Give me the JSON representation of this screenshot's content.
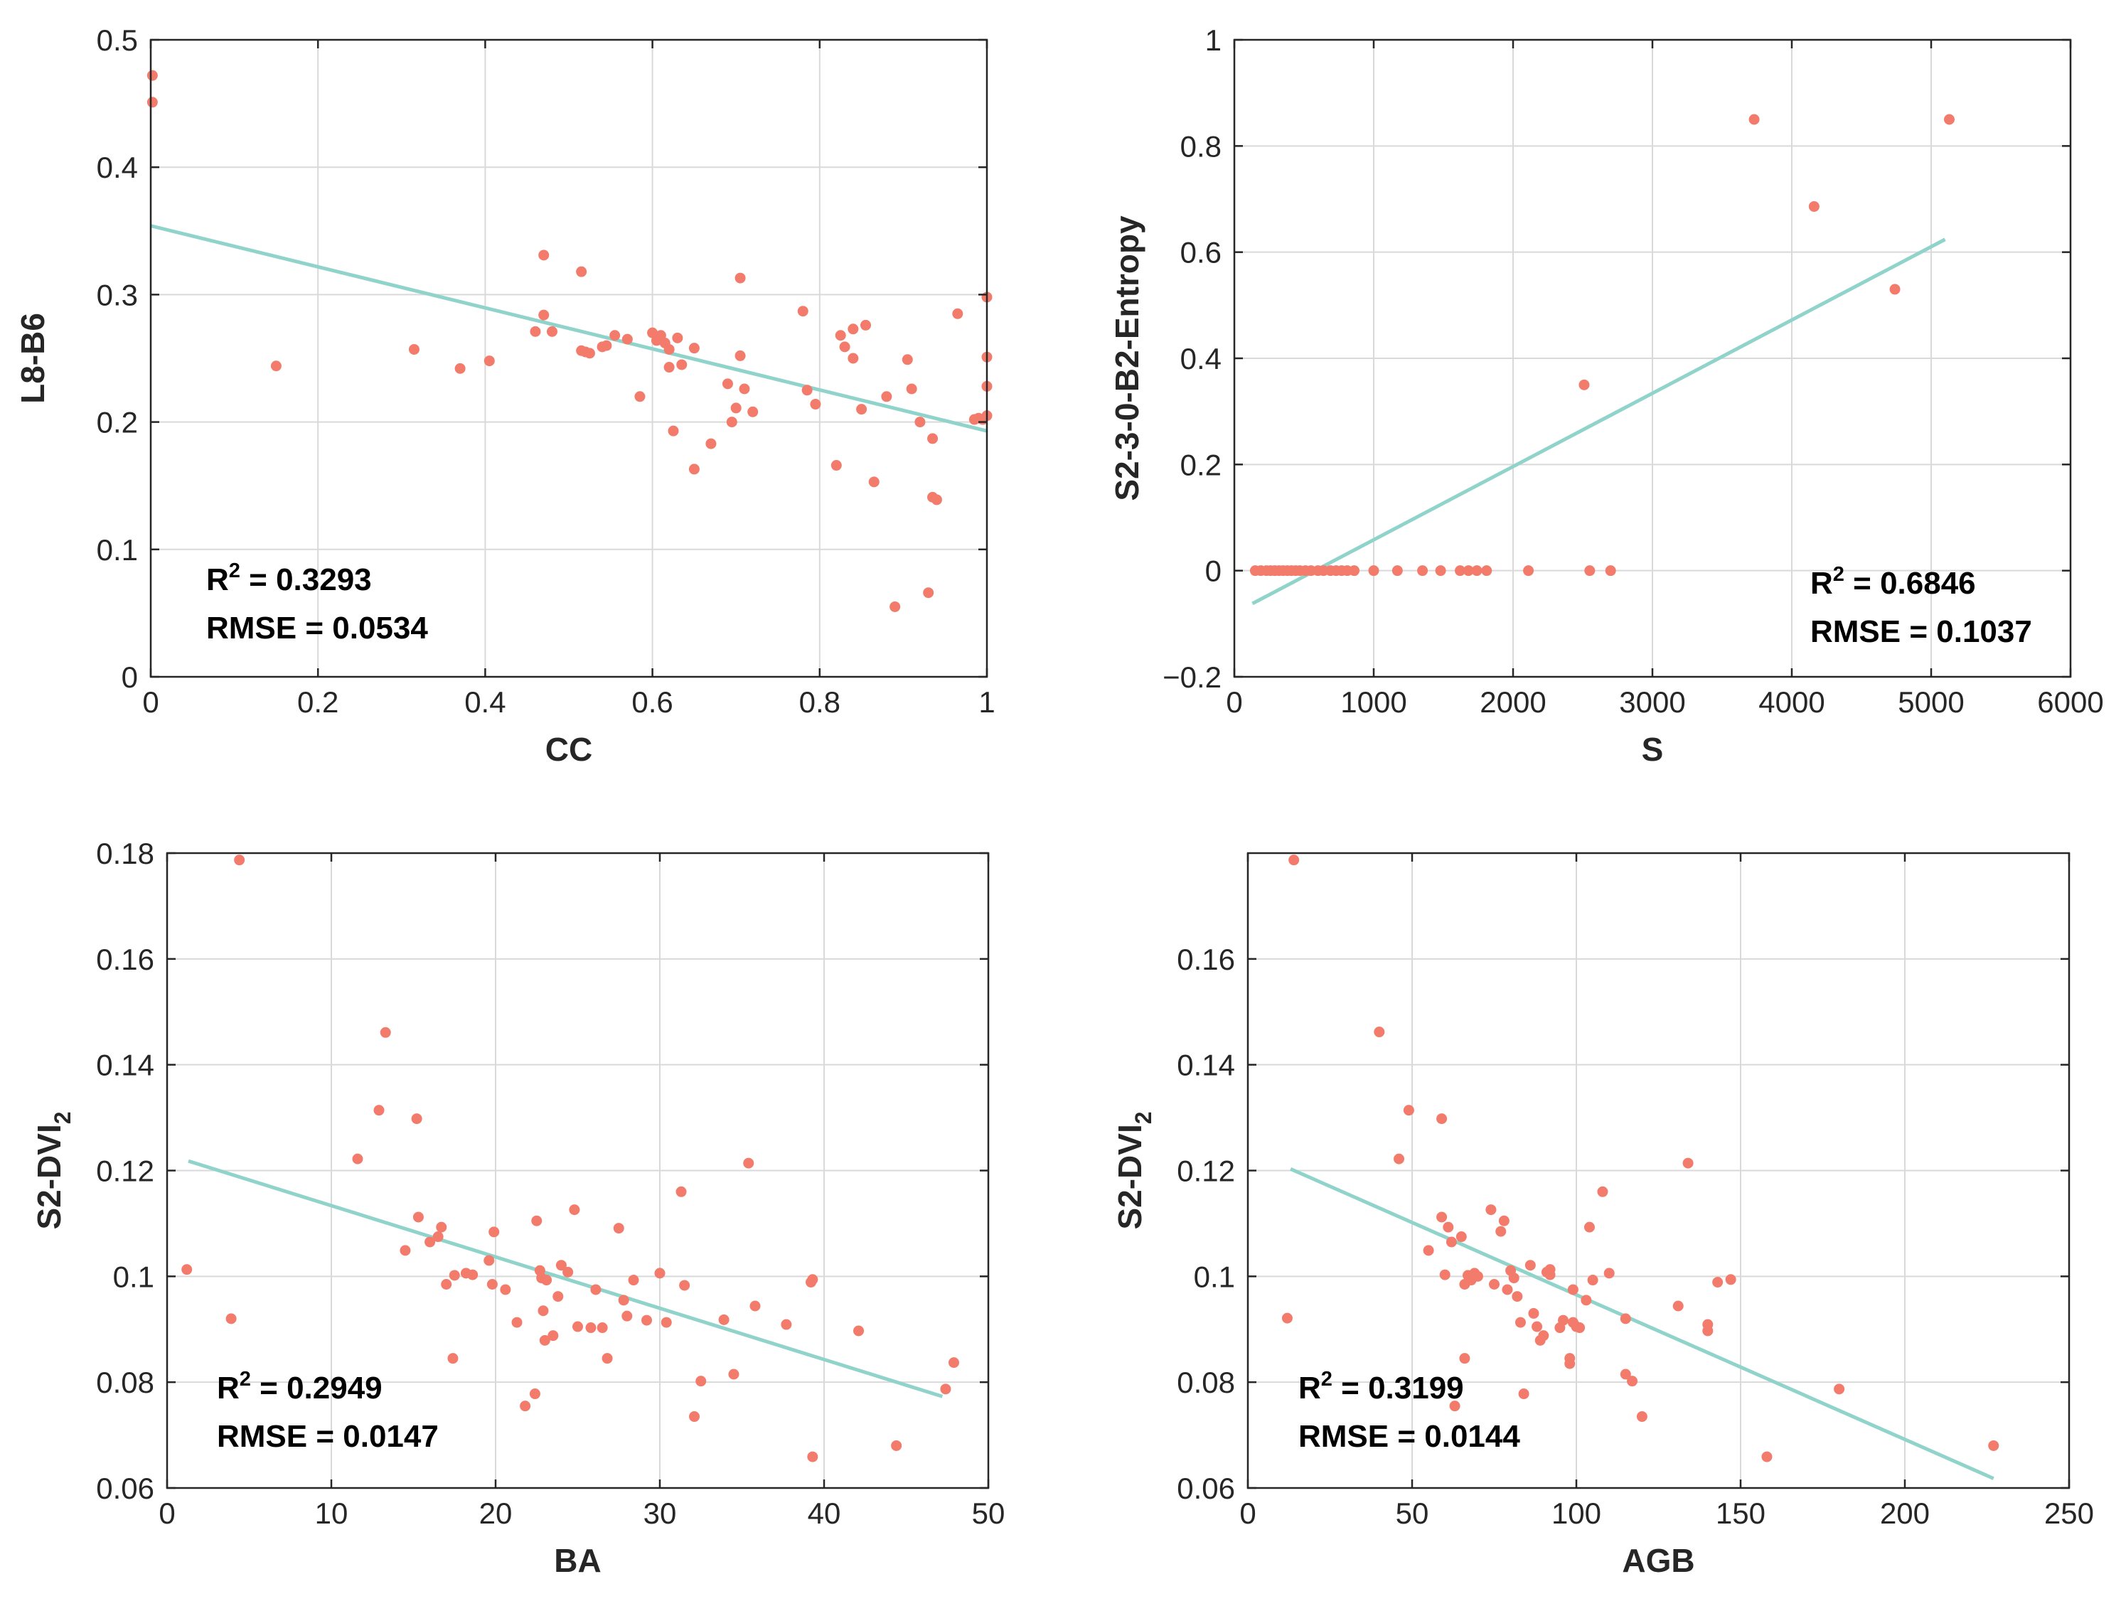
{
  "colors": {
    "points": "#f27b6c",
    "fit_line": "#8fd3ca",
    "grid": "#d9d9d9",
    "axes": "#262626"
  },
  "chart_data": [
    {
      "type": "scatter",
      "xlabel": "CC",
      "ylabel": "L8-B6",
      "xlim": [
        0,
        1
      ],
      "ylim": [
        0,
        0.5
      ],
      "xticks": [
        0,
        0.2,
        0.4,
        0.6,
        0.8,
        1
      ],
      "yticks": [
        0,
        0.1,
        0.2,
        0.3,
        0.4,
        0.5
      ],
      "xtick_labels": [
        "0",
        "0.2",
        "0.4",
        "0.6",
        "0.8",
        "1"
      ],
      "ytick_labels": [
        "0",
        "0.1",
        "0.2",
        "0.3",
        "0.4",
        "0.5"
      ],
      "grid": true,
      "fit_line": {
        "x": [
          0,
          1
        ],
        "y": [
          0.354,
          0.193
        ]
      },
      "annotation": {
        "r2_label": "R",
        "r2_value": " = 0.3293",
        "rmse": "RMSE = 0.0534",
        "placement": "bottom-left"
      },
      "points": [
        [
          0.002,
          0.472
        ],
        [
          0.002,
          0.451
        ],
        [
          0.15,
          0.244
        ],
        [
          0.315,
          0.257
        ],
        [
          0.37,
          0.242
        ],
        [
          0.405,
          0.248
        ],
        [
          0.46,
          0.271
        ],
        [
          0.47,
          0.331
        ],
        [
          0.47,
          0.284
        ],
        [
          0.48,
          0.271
        ],
        [
          0.515,
          0.318
        ],
        [
          0.515,
          0.256
        ],
        [
          0.52,
          0.255
        ],
        [
          0.525,
          0.254
        ],
        [
          0.54,
          0.259
        ],
        [
          0.545,
          0.26
        ],
        [
          0.555,
          0.268
        ],
        [
          0.57,
          0.265
        ],
        [
          0.585,
          0.22
        ],
        [
          0.6,
          0.27
        ],
        [
          0.605,
          0.264
        ],
        [
          0.61,
          0.268
        ],
        [
          0.615,
          0.262
        ],
        [
          0.62,
          0.257
        ],
        [
          0.62,
          0.243
        ],
        [
          0.625,
          0.193
        ],
        [
          0.63,
          0.266
        ],
        [
          0.635,
          0.245
        ],
        [
          0.65,
          0.258
        ],
        [
          0.65,
          0.163
        ],
        [
          0.67,
          0.183
        ],
        [
          0.69,
          0.23
        ],
        [
          0.695,
          0.2
        ],
        [
          0.7,
          0.211
        ],
        [
          0.705,
          0.313
        ],
        [
          0.705,
          0.252
        ],
        [
          0.71,
          0.226
        ],
        [
          0.72,
          0.208
        ],
        [
          0.78,
          0.287
        ],
        [
          0.785,
          0.225
        ],
        [
          0.795,
          0.214
        ],
        [
          0.82,
          0.166
        ],
        [
          0.825,
          0.268
        ],
        [
          0.83,
          0.259
        ],
        [
          0.84,
          0.273
        ],
        [
          0.84,
          0.25
        ],
        [
          0.85,
          0.21
        ],
        [
          0.855,
          0.276
        ],
        [
          0.865,
          0.153
        ],
        [
          0.88,
          0.22
        ],
        [
          0.89,
          0.055
        ],
        [
          0.905,
          0.249
        ],
        [
          0.91,
          0.226
        ],
        [
          0.92,
          0.2
        ],
        [
          0.93,
          0.066
        ],
        [
          0.935,
          0.187
        ],
        [
          0.935,
          0.141
        ],
        [
          0.94,
          0.139
        ],
        [
          0.965,
          0.285
        ],
        [
          0.985,
          0.202
        ],
        [
          0.99,
          0.203
        ],
        [
          0.995,
          0.202
        ],
        [
          1.0,
          0.298
        ],
        [
          1.0,
          0.251
        ],
        [
          1.0,
          0.228
        ],
        [
          1.0,
          0.205
        ]
      ]
    },
    {
      "type": "scatter",
      "xlabel": "S",
      "ylabel": "S2-3-0-B2-Entropy",
      "xlim": [
        0,
        6000
      ],
      "ylim": [
        -0.2,
        1
      ],
      "xticks": [
        0,
        1000,
        2000,
        3000,
        4000,
        5000,
        6000
      ],
      "yticks": [
        -0.2,
        0,
        0.2,
        0.4,
        0.6,
        0.8,
        1
      ],
      "xtick_labels": [
        "0",
        "1000",
        "2000",
        "3000",
        "4000",
        "5000",
        "6000"
      ],
      "ytick_labels": [
        "−0.2",
        "0",
        "0.2",
        "0.4",
        "0.6",
        "0.8",
        "1"
      ],
      "grid": true,
      "fit_line": {
        "x": [
          130,
          5100
        ],
        "y": [
          -0.062,
          0.624
        ]
      },
      "annotation": {
        "r2_label": "R",
        "r2_value": " = 0.6846",
        "rmse": "RMSE = 0.1037",
        "placement": "bottom-right"
      },
      "points": [
        [
          150,
          0
        ],
        [
          190,
          0
        ],
        [
          230,
          0
        ],
        [
          260,
          0
        ],
        [
          290,
          0
        ],
        [
          320,
          0
        ],
        [
          350,
          0
        ],
        [
          380,
          0
        ],
        [
          410,
          0
        ],
        [
          440,
          0
        ],
        [
          470,
          0
        ],
        [
          510,
          0
        ],
        [
          550,
          0
        ],
        [
          600,
          0
        ],
        [
          640,
          0
        ],
        [
          690,
          0
        ],
        [
          730,
          0
        ],
        [
          770,
          0
        ],
        [
          810,
          0
        ],
        [
          860,
          0
        ],
        [
          1000,
          0
        ],
        [
          1170,
          0
        ],
        [
          1350,
          0
        ],
        [
          1480,
          0
        ],
        [
          1620,
          0
        ],
        [
          1680,
          0
        ],
        [
          1740,
          0
        ],
        [
          1810,
          0
        ],
        [
          2110,
          0
        ],
        [
          2550,
          0
        ],
        [
          2700,
          0
        ],
        [
          2510,
          0.35
        ],
        [
          3730,
          0.85
        ],
        [
          4160,
          0.686
        ],
        [
          4740,
          0.53
        ],
        [
          5130,
          0.85
        ]
      ]
    },
    {
      "type": "scatter",
      "xlabel": "BA",
      "ylabel": "S2-DVI",
      "ylabel_subscript": "2",
      "xlim": [
        0,
        50
      ],
      "ylim": [
        0.06,
        0.18
      ],
      "xticks": [
        0,
        10,
        20,
        30,
        40,
        50
      ],
      "yticks": [
        0.06,
        0.08,
        0.1,
        0.12,
        0.14,
        0.16,
        0.18
      ],
      "xtick_labels": [
        "0",
        "10",
        "20",
        "30",
        "40",
        "50"
      ],
      "ytick_labels": [
        "0.06",
        "0.08",
        "0.1",
        "0.12",
        "0.14",
        "0.16",
        "0.18"
      ],
      "grid": true,
      "fit_line": {
        "x": [
          1.3,
          47.2
        ],
        "y": [
          0.1218,
          0.0773
        ]
      },
      "annotation": {
        "r2_label": "R",
        "r2_value": " = 0.2949",
        "rmse": "RMSE = 0.0147",
        "placement": "bottom-left"
      },
      "points": [
        [
          1.2,
          0.1013
        ],
        [
          3.9,
          0.092
        ],
        [
          4.4,
          0.1787
        ],
        [
          11.6,
          0.1222
        ],
        [
          12.9,
          0.1314
        ],
        [
          13.3,
          0.1461
        ],
        [
          14.5,
          0.1049
        ],
        [
          15.2,
          0.1298
        ],
        [
          15.3,
          0.1112
        ],
        [
          16.0,
          0.1065
        ],
        [
          16.5,
          0.1075
        ],
        [
          16.7,
          0.1093
        ],
        [
          17.0,
          0.0985
        ],
        [
          17.4,
          0.0845
        ],
        [
          17.5,
          0.1002
        ],
        [
          18.2,
          0.1006
        ],
        [
          18.6,
          0.1003
        ],
        [
          19.6,
          0.103
        ],
        [
          19.8,
          0.0985
        ],
        [
          19.9,
          0.1084
        ],
        [
          20.6,
          0.0975
        ],
        [
          21.3,
          0.0913
        ],
        [
          21.8,
          0.0755
        ],
        [
          22.4,
          0.0778
        ],
        [
          22.5,
          0.1105
        ],
        [
          22.7,
          0.1011
        ],
        [
          22.8,
          0.0997
        ],
        [
          22.9,
          0.0935
        ],
        [
          23.0,
          0.0879
        ],
        [
          23.1,
          0.0993
        ],
        [
          23.5,
          0.0888
        ],
        [
          23.8,
          0.0962
        ],
        [
          24.0,
          0.1021
        ],
        [
          24.4,
          0.1008
        ],
        [
          24.8,
          0.1126
        ],
        [
          25.0,
          0.0905
        ],
        [
          25.8,
          0.0903
        ],
        [
          26.1,
          0.0975
        ],
        [
          26.5,
          0.0903
        ],
        [
          26.8,
          0.0845
        ],
        [
          27.5,
          0.1091
        ],
        [
          27.8,
          0.0955
        ],
        [
          28.0,
          0.0925
        ],
        [
          28.4,
          0.0993
        ],
        [
          29.2,
          0.0917
        ],
        [
          30.0,
          0.1006
        ],
        [
          30.4,
          0.0913
        ],
        [
          31.3,
          0.116
        ],
        [
          31.5,
          0.0983
        ],
        [
          32.1,
          0.0735
        ],
        [
          32.5,
          0.0802
        ],
        [
          33.9,
          0.0918
        ],
        [
          34.5,
          0.0815
        ],
        [
          35.4,
          0.1214
        ],
        [
          35.8,
          0.0944
        ],
        [
          37.7,
          0.0909
        ],
        [
          39.2,
          0.0989
        ],
        [
          39.3,
          0.0994
        ],
        [
          39.3,
          0.0659
        ],
        [
          42.1,
          0.0897
        ],
        [
          44.4,
          0.068
        ],
        [
          47.4,
          0.0787
        ],
        [
          47.9,
          0.0837
        ]
      ]
    },
    {
      "type": "scatter",
      "xlabel": "AGB",
      "ylabel": "S2-DVI",
      "ylabel_subscript": "2",
      "xlim": [
        0,
        250
      ],
      "ylim": [
        0.06,
        0.18
      ],
      "xticks": [
        0,
        50,
        100,
        150,
        200,
        250
      ],
      "yticks": [
        0.06,
        0.08,
        0.1,
        0.12,
        0.14,
        0.16
      ],
      "xtick_labels": [
        "0",
        "50",
        "100",
        "150",
        "200",
        "250"
      ],
      "ytick_labels": [
        "0.06",
        "0.08",
        "0.1",
        "0.12",
        "0.14",
        "0.16"
      ],
      "grid": true,
      "fit_line": {
        "x": [
          13,
          227
        ],
        "y": [
          0.1203,
          0.0618
        ]
      },
      "annotation": {
        "r2_label": "R",
        "r2_value": " = 0.3199",
        "rmse": "RMSE = 0.0144",
        "placement": "bottom-left"
      },
      "points": [
        [
          12,
          0.0921
        ],
        [
          14,
          0.1787
        ],
        [
          40,
          0.1462
        ],
        [
          46,
          0.1222
        ],
        [
          49,
          0.1314
        ],
        [
          55,
          0.1049
        ],
        [
          59,
          0.1298
        ],
        [
          59,
          0.1112
        ],
        [
          60,
          0.1003
        ],
        [
          61,
          0.1093
        ],
        [
          62,
          0.1065
        ],
        [
          63,
          0.0755
        ],
        [
          65,
          0.1075
        ],
        [
          66,
          0.0985
        ],
        [
          66,
          0.0845
        ],
        [
          67,
          0.1002
        ],
        [
          68,
          0.0993
        ],
        [
          69,
          0.1006
        ],
        [
          70,
          0.1
        ],
        [
          74,
          0.1126
        ],
        [
          75,
          0.0985
        ],
        [
          77,
          0.1085
        ],
        [
          78,
          0.1105
        ],
        [
          79,
          0.0975
        ],
        [
          80,
          0.1011
        ],
        [
          81,
          0.0997
        ],
        [
          82,
          0.0962
        ],
        [
          83,
          0.0913
        ],
        [
          84,
          0.0778
        ],
        [
          86,
          0.1021
        ],
        [
          87,
          0.093
        ],
        [
          88,
          0.0905
        ],
        [
          89,
          0.0879
        ],
        [
          90,
          0.0888
        ],
        [
          91,
          0.1008
        ],
        [
          92,
          0.1003
        ],
        [
          92,
          0.1013
        ],
        [
          95,
          0.0903
        ],
        [
          96,
          0.0917
        ],
        [
          98,
          0.0845
        ],
        [
          98,
          0.0835
        ],
        [
          99,
          0.0913
        ],
        [
          99,
          0.0975
        ],
        [
          100,
          0.0905
        ],
        [
          101,
          0.0903
        ],
        [
          103,
          0.0955
        ],
        [
          104,
          0.1093
        ],
        [
          105,
          0.0993
        ],
        [
          108,
          0.116
        ],
        [
          110,
          0.1006
        ],
        [
          115,
          0.092
        ],
        [
          115,
          0.0815
        ],
        [
          117,
          0.0802
        ],
        [
          120,
          0.0735
        ],
        [
          131,
          0.0944
        ],
        [
          134,
          0.1214
        ],
        [
          140,
          0.0909
        ],
        [
          140,
          0.0897
        ],
        [
          143,
          0.0989
        ],
        [
          147,
          0.0994
        ],
        [
          158,
          0.0659
        ],
        [
          180,
          0.0787
        ],
        [
          227,
          0.068
        ]
      ]
    }
  ]
}
